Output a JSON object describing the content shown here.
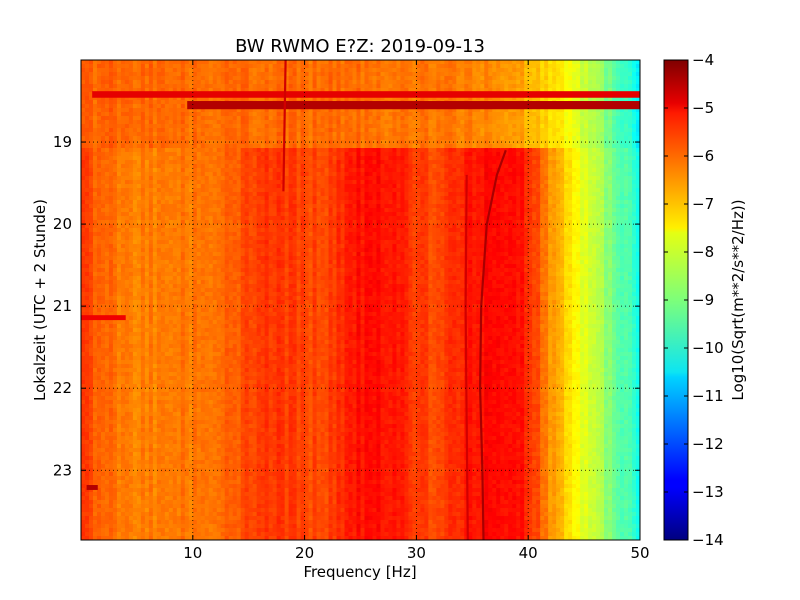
{
  "chart_data": {
    "type": "heatmap",
    "title": "BW RWMO E?Z: 2019-09-13",
    "xlabel": "Frequency [Hz]",
    "ylabel": "Lokalzeit (UTC + 2 Stunde)",
    "xlim": [
      0,
      50
    ],
    "ylim": [
      18.0,
      23.85
    ],
    "y_inverted": true,
    "x_ticks": [
      10,
      20,
      30,
      40,
      50
    ],
    "y_ticks": [
      19,
      20,
      21,
      22,
      23
    ],
    "grid": true,
    "colormap": "jet",
    "colorbar": {
      "label": "Log10(Sqrt(m**2/s**2/Hz))",
      "range": [
        -14,
        -4
      ],
      "ticks": [
        -4,
        -5,
        -6,
        -7,
        -8,
        -9,
        -10,
        -11,
        -12,
        -13,
        -14
      ]
    },
    "spectrum_profile": {
      "frequency_hz": [
        0,
        2,
        5,
        10,
        14,
        16,
        18,
        20,
        22,
        24,
        26,
        28,
        30,
        32,
        34,
        36,
        38,
        40,
        42,
        44,
        46,
        48,
        50
      ],
      "level_log10": [
        -5.8,
        -6.3,
        -6.5,
        -6.4,
        -6.2,
        -5.7,
        -5.8,
        -5.9,
        -6.0,
        -5.5,
        -5.3,
        -5.4,
        -5.8,
        -6.0,
        -5.6,
        -5.3,
        -5.2,
        -5.6,
        -6.7,
        -7.6,
        -8.4,
        -9.2,
        -10.0
      ]
    },
    "pre_19h_band_profile": {
      "frequency_hz": [
        0,
        10,
        20,
        30,
        38,
        40,
        42,
        44,
        46,
        48,
        50
      ],
      "level_log10": [
        -6.2,
        -6.3,
        -6.3,
        -6.4,
        -6.6,
        -7.0,
        -7.4,
        -7.9,
        -8.6,
        -9.4,
        -10.3
      ]
    },
    "annotations": [
      {
        "kind": "horizontal_band",
        "time_start": 18.38,
        "time_end": 18.46,
        "freq_start": 1,
        "freq_end": 50,
        "level_log10": -5.0
      },
      {
        "kind": "horizontal_band",
        "time_start": 18.5,
        "time_end": 18.6,
        "freq_start": 9.5,
        "freq_end": 50,
        "level_log10": -4.5
      },
      {
        "kind": "drifting_line",
        "freq_at_time": [
          [
            18.0,
            18.3
          ],
          [
            19.6,
            18.1
          ]
        ],
        "level_log10": -4.8
      },
      {
        "kind": "drifting_line",
        "freq_at_time": [
          [
            19.1,
            38.0
          ],
          [
            19.4,
            37.2
          ],
          [
            20.0,
            36.3
          ],
          [
            21.0,
            35.8
          ],
          [
            22.0,
            35.7
          ],
          [
            23.0,
            35.9
          ],
          [
            23.85,
            36.0
          ]
        ],
        "level_log10": -4.4
      },
      {
        "kind": "drifting_line",
        "freq_at_time": [
          [
            19.4,
            34.5
          ],
          [
            21.0,
            34.4
          ],
          [
            23.85,
            34.6
          ]
        ],
        "level_log10": -4.8
      },
      {
        "kind": "horizontal_band",
        "time_start": 21.11,
        "time_end": 21.17,
        "freq_start": 0,
        "freq_end": 4,
        "level_log10": -5.1
      },
      {
        "kind": "horizontal_band",
        "time_start": 23.18,
        "time_end": 23.24,
        "freq_start": 0.5,
        "freq_end": 1.5,
        "level_log10": -4.5
      }
    ]
  }
}
